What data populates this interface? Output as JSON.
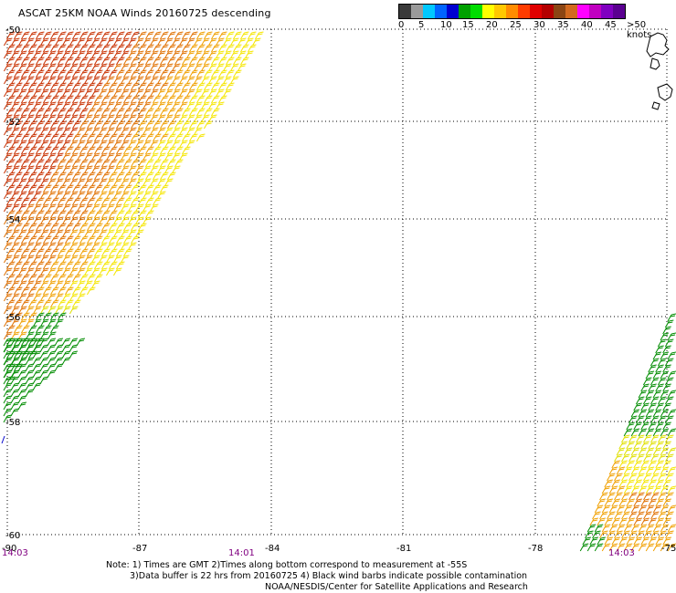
{
  "title": "ASCAT 25KM NOAA Winds 20160725 descending",
  "legend": {
    "colors": [
      "#3a3a3a",
      "#9a9a9a",
      "#00c8ff",
      "#0064ff",
      "#0000d0",
      "#00a000",
      "#00dd00",
      "#ffff00",
      "#ffc800",
      "#ff8c00",
      "#ff3c00",
      "#e00000",
      "#b40000",
      "#8b4513",
      "#d2691e",
      "#ff00ff",
      "#c000c0",
      "#8000c0",
      "#5a0090"
    ],
    "ticks": [
      "0",
      "5",
      "10",
      "15",
      "20",
      "25",
      "30",
      "35",
      "40",
      "45",
      ">50 knots"
    ]
  },
  "map": {
    "lat_labels": [
      "-50",
      "-52",
      "-54",
      "-56",
      "-58",
      "-60"
    ],
    "lon_labels": [
      "-90",
      "-87",
      "-84",
      "-81",
      "-78",
      "-75"
    ],
    "time_labels": [
      "14:03",
      "14:01",
      "14:03"
    ],
    "swath_colors": {
      "high": "#c83000",
      "mid": "#e07000",
      "orange": "#f0a000",
      "yellow": "#f5e600",
      "lime": "#e0e000",
      "green": "#008c00",
      "dark_green": "#006400",
      "blue": "#0000cc"
    }
  },
  "footer": {
    "line1": "Note: 1) Times are GMT 2)Times along bottom correspond to measurement at -55S",
    "line2": "3)Data buffer is 22 hrs from 20160725 4) Black wind barbs indicate possible contamination",
    "line3": "NOAA/NESDIS/Center for Satellite Applications and Research"
  }
}
